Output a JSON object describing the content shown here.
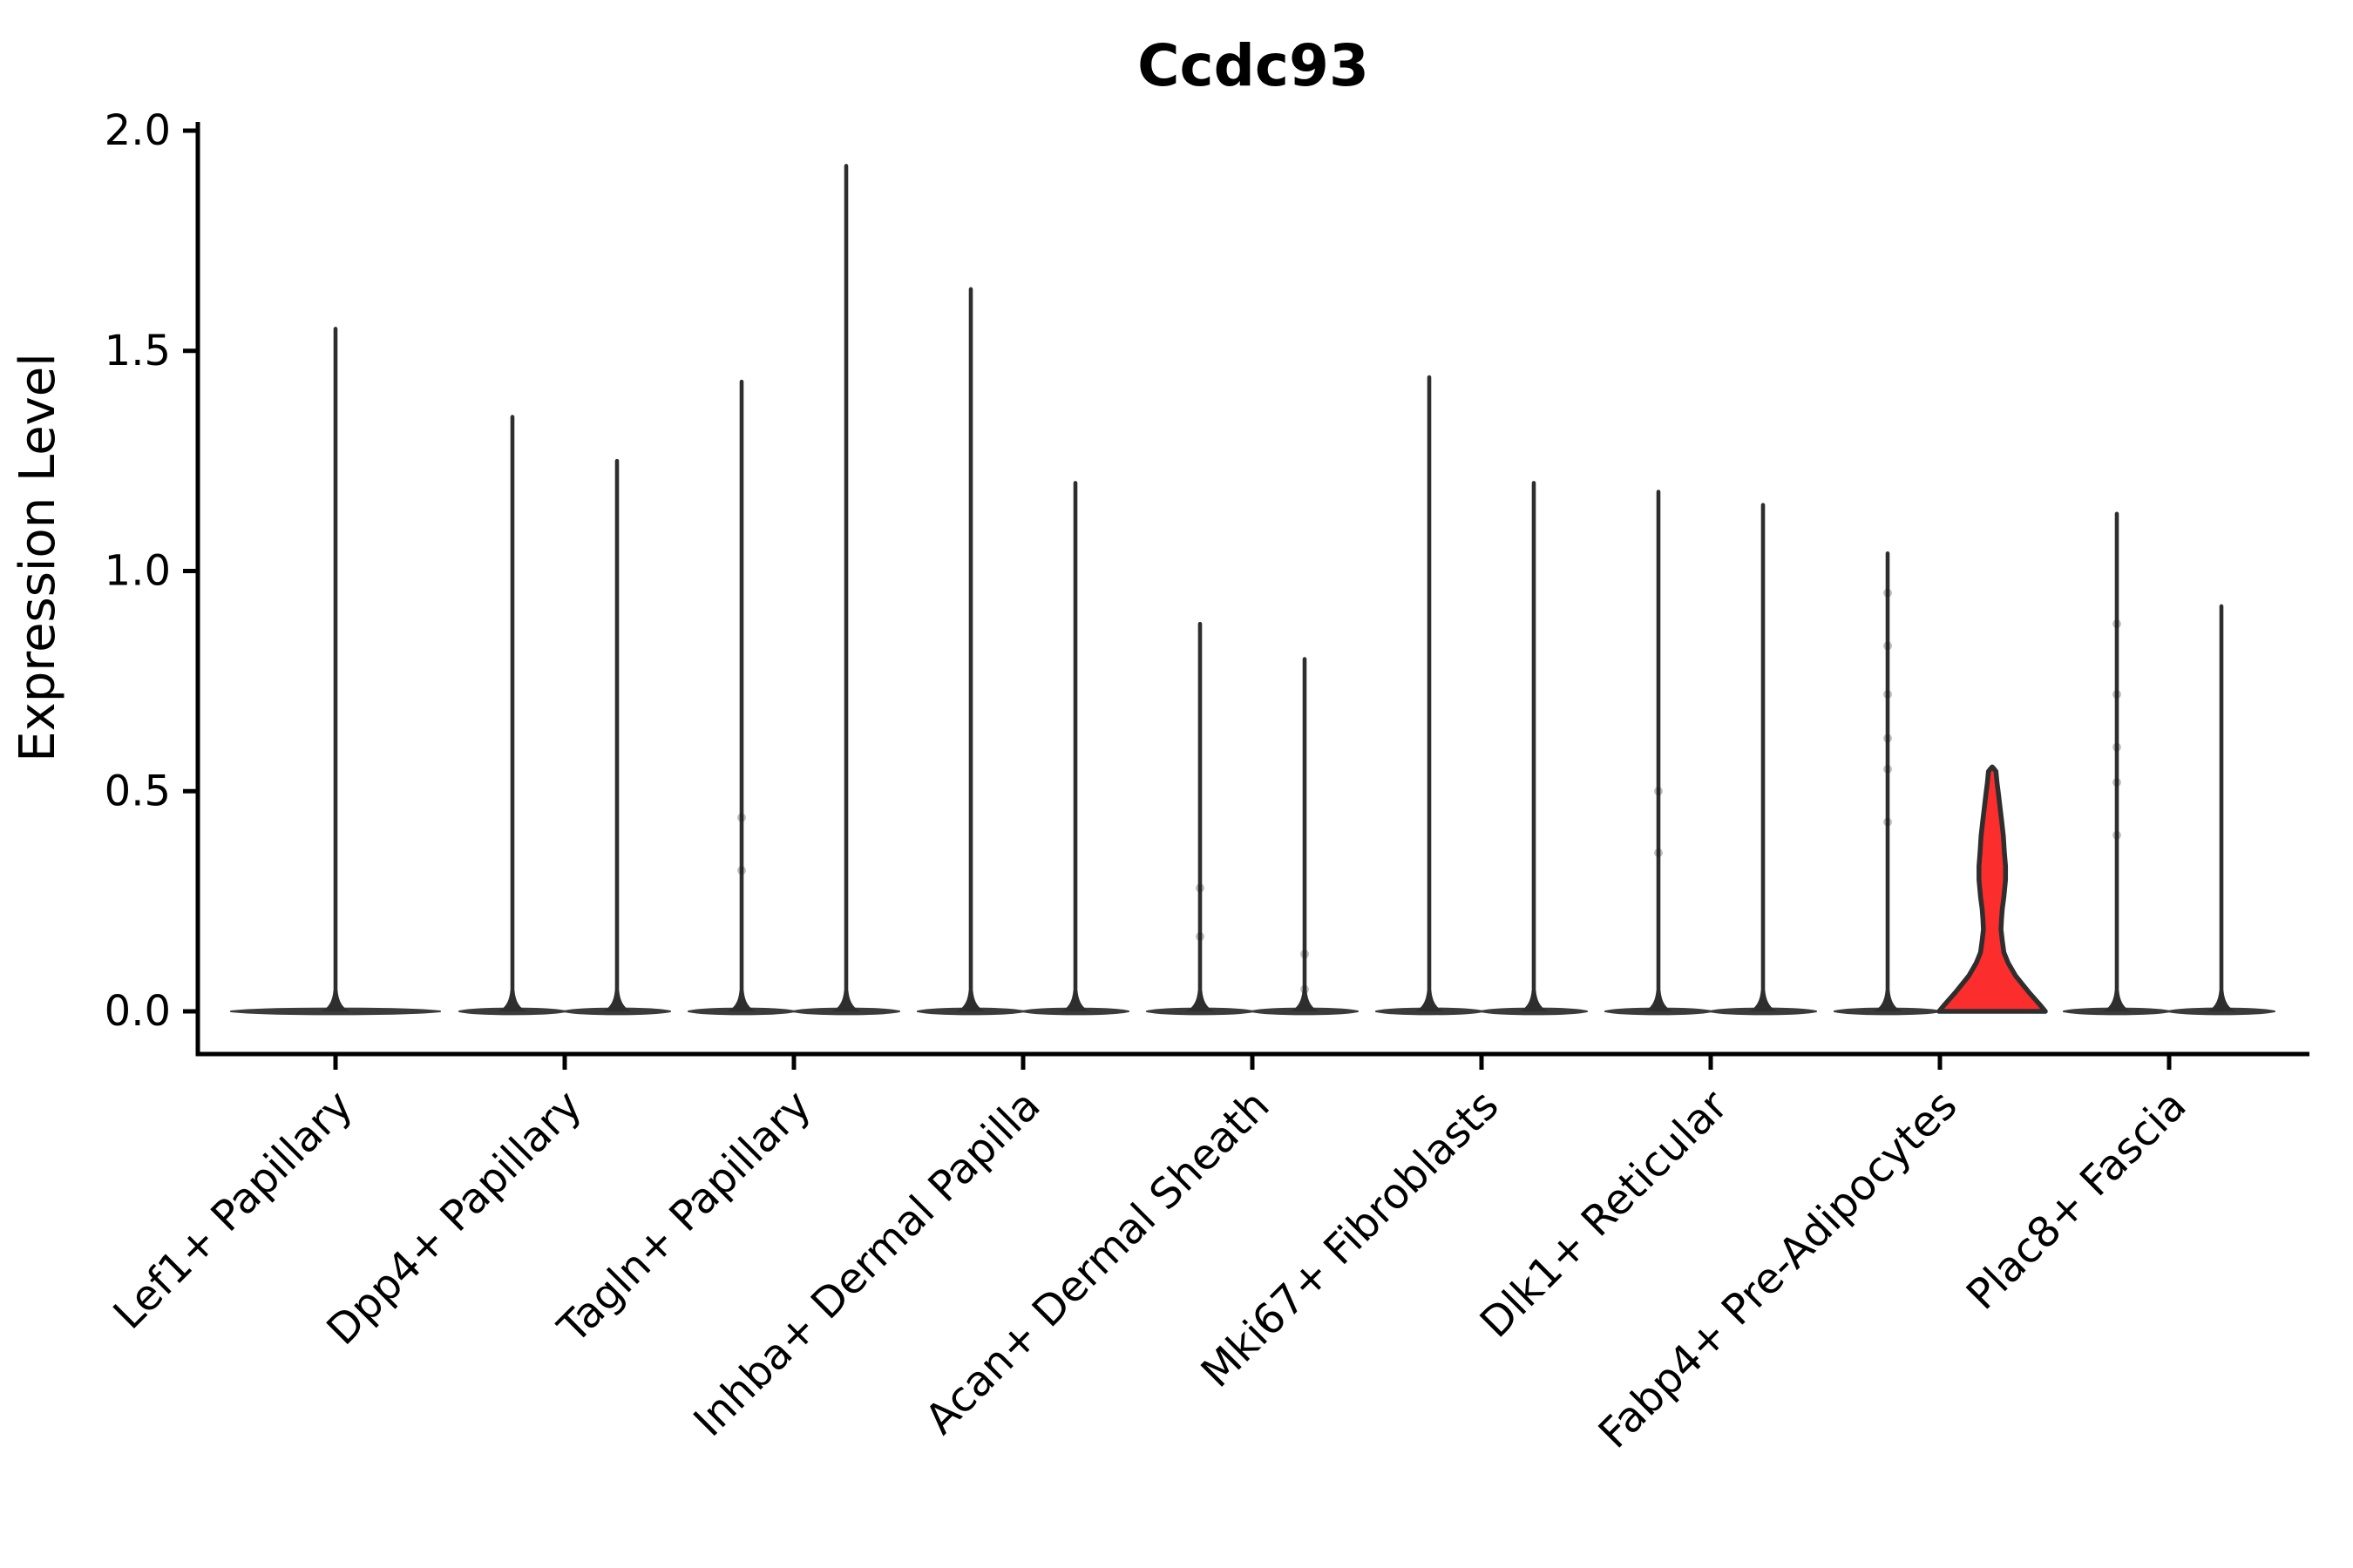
{
  "title": "Ccdc93",
  "chart_data": {
    "type": "violin",
    "title": "Ccdc93",
    "ylabel": "Expression Level",
    "xlabel": "",
    "ylim": [
      0.0,
      2.0
    ],
    "y_tick_labels": [
      "0.0",
      "0.5",
      "1.0",
      "1.5",
      "2.0"
    ],
    "y_tick_values": [
      0.0,
      0.5,
      1.0,
      1.5,
      2.0
    ],
    "grid": false,
    "legend": "none",
    "line_color": "#2E2E2E",
    "baseline_color": "#3B3B3B",
    "axis_color": "#000000",
    "highlight_color": "#FB2D2D",
    "categories": [
      "Lef1+ Papillary",
      "Dpp4+ Papillary",
      "Tagln+ Papillary",
      "Inhba+ Dermal Papilla",
      "Acan+ Dermal Sheath",
      "Mki67+ Fibroblasts",
      "Dlk1+ Reticular",
      "Fabp4+ Pre-Adipocytes",
      "Plac8+ Fascia"
    ],
    "violins": [
      {
        "category": "Lef1+ Papillary",
        "category_index": 0,
        "position": "center",
        "max_expression": 1.55,
        "style": "spike"
      },
      {
        "category": "Dpp4+ Papillary",
        "category_index": 1,
        "position": "left",
        "max_expression": 1.35,
        "style": "spike"
      },
      {
        "category": "Dpp4+ Papillary",
        "category_index": 1,
        "position": "right",
        "max_expression": 1.25,
        "style": "spike"
      },
      {
        "category": "Tagln+ Papillary",
        "category_index": 2,
        "position": "left",
        "max_expression": 1.43,
        "style": "spike",
        "points": [
          0.44,
          0.32
        ]
      },
      {
        "category": "Tagln+ Papillary",
        "category_index": 2,
        "position": "right",
        "max_expression": 1.92,
        "style": "spike"
      },
      {
        "category": "Inhba+ Dermal Papilla",
        "category_index": 3,
        "position": "left",
        "max_expression": 1.64,
        "style": "spike"
      },
      {
        "category": "Inhba+ Dermal Papilla",
        "category_index": 3,
        "position": "right",
        "max_expression": 1.2,
        "style": "spike"
      },
      {
        "category": "Acan+ Dermal Sheath",
        "category_index": 4,
        "position": "left",
        "max_expression": 0.88,
        "style": "spike",
        "points": [
          0.28,
          0.17
        ]
      },
      {
        "category": "Acan+ Dermal Sheath",
        "category_index": 4,
        "position": "right",
        "max_expression": 0.8,
        "style": "spike",
        "points": [
          0.13,
          0.05
        ]
      },
      {
        "category": "Mki67+ Fibroblasts",
        "category_index": 5,
        "position": "left",
        "max_expression": 1.44,
        "style": "spike"
      },
      {
        "category": "Mki67+ Fibroblasts",
        "category_index": 5,
        "position": "right",
        "max_expression": 1.2,
        "style": "spike"
      },
      {
        "category": "Dlk1+ Reticular",
        "category_index": 6,
        "position": "left",
        "max_expression": 1.18,
        "style": "spike",
        "points": [
          0.5,
          0.36
        ]
      },
      {
        "category": "Dlk1+ Reticular",
        "category_index": 6,
        "position": "right",
        "max_expression": 1.15,
        "style": "spike"
      },
      {
        "category": "Fabp4+ Pre-Adipocytes",
        "category_index": 7,
        "position": "left",
        "max_expression": 1.04,
        "style": "spike",
        "points": [
          0.95,
          0.83,
          0.72,
          0.62,
          0.55,
          0.43
        ]
      },
      {
        "category": "Fabp4+ Pre-Adipocytes",
        "category_index": 7,
        "position": "right",
        "max_expression": 0.55,
        "style": "filled",
        "fill": "#FB2D2D",
        "profile": [
          [
            0.0,
            1.0
          ],
          [
            0.016,
            0.89
          ],
          [
            0.042,
            0.7
          ],
          [
            0.081,
            0.44
          ],
          [
            0.11,
            0.3
          ],
          [
            0.134,
            0.22
          ],
          [
            0.16,
            0.19
          ],
          [
            0.186,
            0.165
          ],
          [
            0.21,
            0.175
          ],
          [
            0.233,
            0.19
          ],
          [
            0.26,
            0.22
          ],
          [
            0.299,
            0.25
          ],
          [
            0.33,
            0.25
          ],
          [
            0.36,
            0.23
          ],
          [
            0.398,
            0.21
          ],
          [
            0.43,
            0.18
          ],
          [
            0.46,
            0.15
          ],
          [
            0.497,
            0.115
          ],
          [
            0.52,
            0.09
          ],
          [
            0.545,
            0.07
          ],
          [
            0.55,
            0.04
          ],
          [
            0.555,
            0.0
          ]
        ]
      },
      {
        "category": "Plac8+ Fascia",
        "category_index": 8,
        "position": "left",
        "max_expression": 1.13,
        "style": "spike",
        "points": [
          0.88,
          0.72,
          0.6,
          0.52,
          0.4
        ]
      },
      {
        "category": "Plac8+ Fascia",
        "category_index": 8,
        "position": "right",
        "max_expression": 0.92,
        "style": "spike"
      }
    ]
  }
}
